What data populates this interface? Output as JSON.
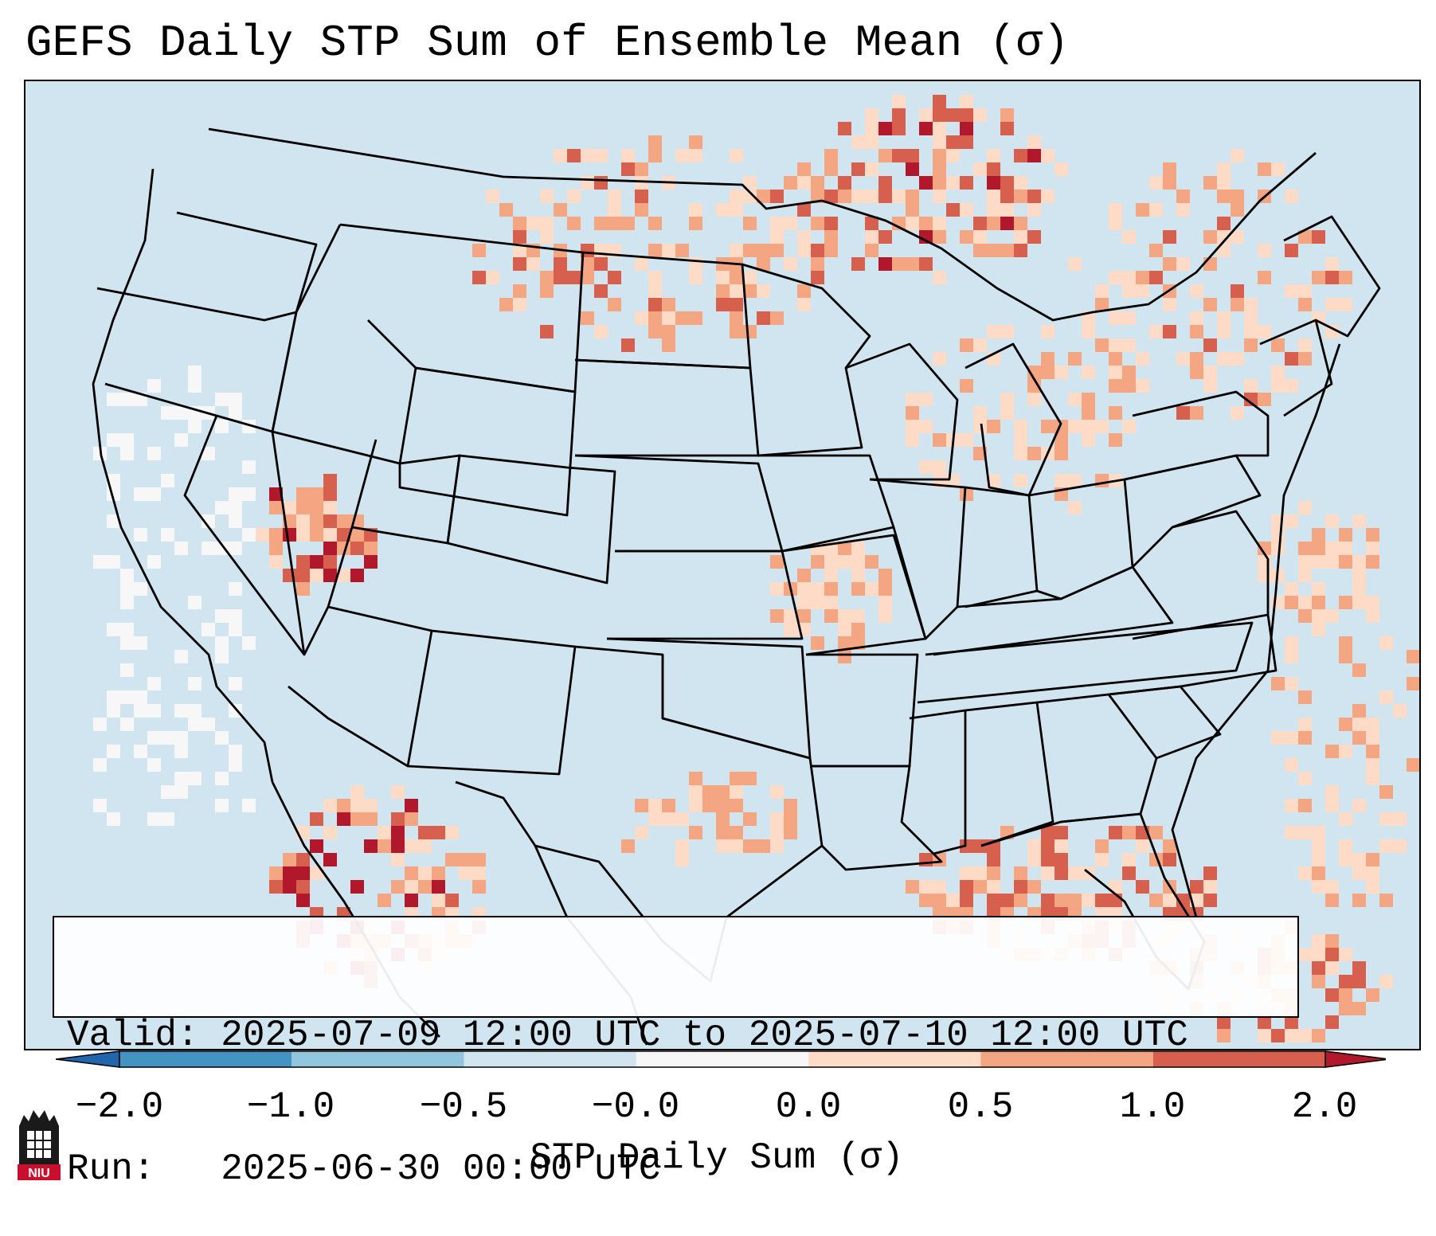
{
  "title": "GEFS Daily STP Sum of Ensemble Mean (σ)",
  "info": {
    "valid_line": "Valid: 2025-07-09 12:00 UTC to 2025-07-10 12:00 UTC",
    "run_line": "Run:   2025-06-30 00:00 UTC"
  },
  "colorbar": {
    "label": "STP Daily Sum (σ)",
    "ticks": [
      "−2.0",
      "−1.0",
      "−0.5",
      "−0.0",
      "0.0",
      "0.5",
      "1.0",
      "2.0"
    ],
    "colors": [
      "#2166ac",
      "#4393c3",
      "#92c5de",
      "#d1e5f0",
      "#f7f7f7",
      "#fddbc7",
      "#f4a582",
      "#d6604d",
      "#b2182b"
    ],
    "extend": "both"
  },
  "logo": {
    "text": "NIU",
    "icon": "niu-castle-logo-icon"
  },
  "map": {
    "region": "Continental United States",
    "background_color": "#d1e5f0",
    "hotspots": [
      {
        "area": "Northern Plains / Canadian Prairies",
        "level": "0.5 to 2.0"
      },
      {
        "area": "Upper Great Lakes / Ontario",
        "level": "0.5 to 2.0"
      },
      {
        "area": "New England / New York",
        "level": "0.0 to 1.0"
      },
      {
        "area": "Nevada / Great Basin",
        "level": "0.5 to 2.0"
      },
      {
        "area": "Sierra Madre Occidental, Mexico",
        "level": "1.0 to 2.0"
      },
      {
        "area": "Gulf Coast / Florida",
        "level": "0.5 to 2.0"
      },
      {
        "area": "Coastal California offshore",
        "level": "−0.0 to 0.0"
      }
    ]
  }
}
